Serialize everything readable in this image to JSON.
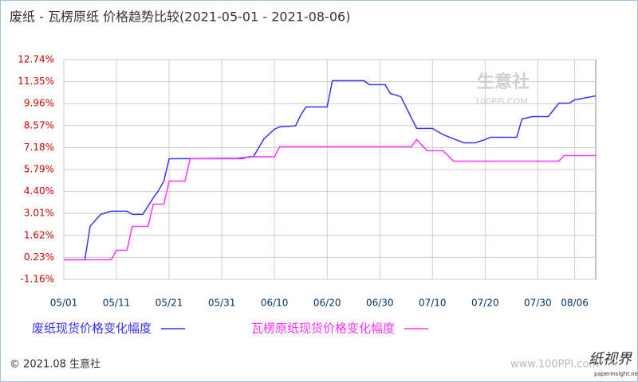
{
  "chart_data": {
    "type": "line",
    "title": "废纸 - 瓦楞原纸 价格趋势比较(2021-05-01 - 2021-08-06)",
    "watermark": "生意社",
    "watermark_sub": "100PPI.COM",
    "footer": "© 2021.08 生意社",
    "footer_url": "www.100PPI.com",
    "logo": "纸视界",
    "logo_sub": "paperinsight.net",
    "xlim": [
      "05/01",
      "08/10"
    ],
    "xticks": [
      "05/01",
      "05/11",
      "05/21",
      "05/31",
      "06/10",
      "06/20",
      "06/30",
      "07/10",
      "07/20",
      "07/30",
      "08/06"
    ],
    "ylim": [
      -1.16,
      12.74
    ],
    "yticks": [
      {
        "value": 12.74,
        "label": "12.74%"
      },
      {
        "value": 11.35,
        "label": "11.35%"
      },
      {
        "value": 9.96,
        "label": "9.96%"
      },
      {
        "value": 8.57,
        "label": "8.57%"
      },
      {
        "value": 7.18,
        "label": "7.18%"
      },
      {
        "value": 5.79,
        "label": "5.79%"
      },
      {
        "value": 4.4,
        "label": "4.40%"
      },
      {
        "value": 3.01,
        "label": "3.01%"
      },
      {
        "value": 1.62,
        "label": "1.62%"
      },
      {
        "value": 0.23,
        "label": "0.23%"
      },
      {
        "value": -1.16,
        "label": "-1.16%"
      }
    ],
    "grid": true,
    "series": [
      {
        "name": "废纸现货价格变化幅度",
        "color": "#3333ff",
        "x": [
          "05/01",
          "05/05",
          "05/06",
          "05/08",
          "05/10",
          "05/13",
          "05/14",
          "05/16",
          "05/18",
          "05/19",
          "05/20",
          "05/21",
          "06/03",
          "06/06",
          "06/08",
          "06/10",
          "06/11",
          "06/14",
          "06/15",
          "06/16",
          "06/20",
          "06/21",
          "06/27",
          "06/28",
          "07/01",
          "07/02",
          "07/04",
          "07/07",
          "07/10",
          "07/12",
          "07/14",
          "07/16",
          "07/18",
          "07/20",
          "07/21",
          "07/26",
          "07/27",
          "07/29",
          "08/01",
          "08/03",
          "08/05",
          "08/06",
          "08/10"
        ],
        "values": [
          0.08,
          0.08,
          2.2,
          2.95,
          3.15,
          3.15,
          2.95,
          2.95,
          4.0,
          4.46,
          5.06,
          6.47,
          6.5,
          6.6,
          7.73,
          8.34,
          8.49,
          8.55,
          9.24,
          9.75,
          9.75,
          11.41,
          11.41,
          11.16,
          11.16,
          10.6,
          10.4,
          8.39,
          8.39,
          8.0,
          7.73,
          7.48,
          7.48,
          7.68,
          7.83,
          7.83,
          8.99,
          9.14,
          9.14,
          9.99,
          9.99,
          10.2,
          10.45
        ]
      },
      {
        "name": "瓦楞原纸现货价格变化幅度",
        "color": "#ff33ff",
        "x": [
          "05/01",
          "05/10",
          "05/11",
          "05/13",
          "05/14",
          "05/17",
          "05/18",
          "05/20",
          "05/21",
          "05/24",
          "05/25",
          "06/04",
          "06/05",
          "06/10",
          "06/11",
          "07/06",
          "07/07",
          "07/09",
          "07/12",
          "07/14",
          "08/03",
          "08/04",
          "08/10"
        ],
        "values": [
          0.08,
          0.08,
          0.68,
          0.68,
          2.19,
          2.19,
          3.6,
          3.6,
          5.06,
          5.06,
          6.47,
          6.47,
          6.6,
          6.6,
          7.23,
          7.23,
          7.68,
          6.98,
          6.98,
          6.32,
          6.32,
          6.67,
          6.67
        ]
      }
    ]
  }
}
